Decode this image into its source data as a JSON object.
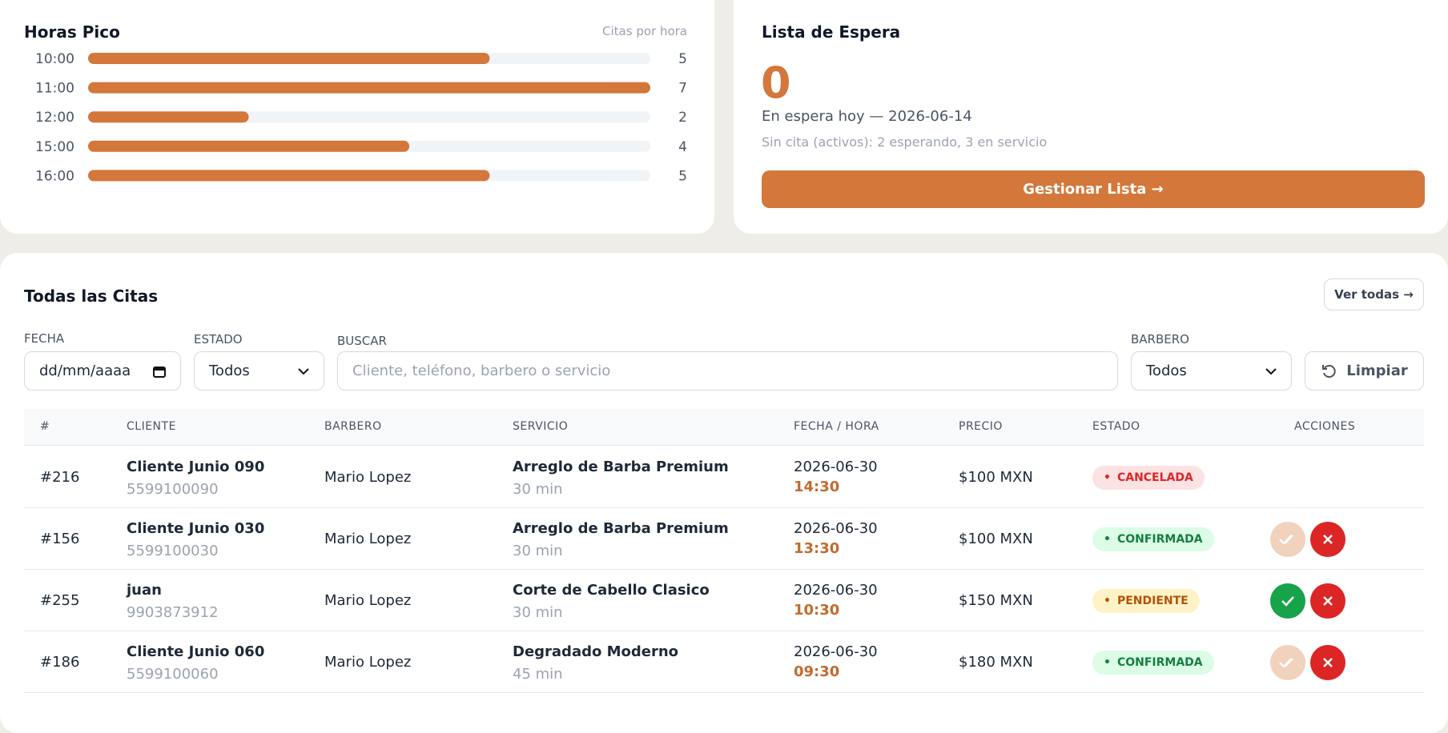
{
  "peak_hours": {
    "type": "bar",
    "title": "Horas Pico",
    "subtitle": "Citas por hora",
    "categories": [
      "10:00",
      "11:00",
      "12:00",
      "15:00",
      "16:00"
    ],
    "values": [
      5,
      7,
      2,
      4,
      5
    ],
    "color": "#d4773a"
  },
  "waitlist": {
    "title": "Lista de Espera",
    "count": "0",
    "today": "En espera hoy — 2026-06-14",
    "active": "Sin cita (activos): 2 esperando, 3 en servicio",
    "button": "Gestionar Lista →"
  },
  "appointments": {
    "title": "Todas las Citas",
    "view_all": "Ver todas →",
    "filters": {
      "date_label": "FECHA",
      "date_placeholder": "dd/mm/aaaa",
      "status_label": "ESTADO",
      "status_value": "Todos",
      "search_label": "BUSCAR",
      "search_placeholder": "Cliente, teléfono, barbero o servicio",
      "barber_label": "BARBERO",
      "barber_value": "Todos",
      "clear": "Limpiar"
    },
    "columns": [
      "#",
      "CLIENTE",
      "BARBERO",
      "SERVICIO",
      "FECHA / HORA",
      "PRECIO",
      "ESTADO",
      "ACCIONES"
    ],
    "rows": [
      {
        "id": "#216",
        "client": "Cliente Junio 090",
        "phone": "5599100090",
        "barber": "Mario Lopez",
        "service": "Arreglo de Barba Premium",
        "duration": "30 min",
        "date": "2026-06-30",
        "time": "14:30",
        "price": "$100 MXN",
        "status": "CANCELADA"
      },
      {
        "id": "#156",
        "client": "Cliente Junio 030",
        "phone": "5599100030",
        "barber": "Mario Lopez",
        "service": "Arreglo de Barba Premium",
        "duration": "30 min",
        "date": "2026-06-30",
        "time": "13:30",
        "price": "$100 MXN",
        "status": "CONFIRMADA"
      },
      {
        "id": "#255",
        "client": "juan",
        "phone": "9903873912",
        "barber": "Mario Lopez",
        "service": "Corte de Cabello Clasico",
        "duration": "30 min",
        "date": "2026-06-30",
        "time": "10:30",
        "price": "$150 MXN",
        "status": "PENDIENTE"
      },
      {
        "id": "#186",
        "client": "Cliente Junio 060",
        "phone": "5599100060",
        "barber": "Mario Lopez",
        "service": "Degradado Moderno",
        "duration": "45 min",
        "date": "2026-06-30",
        "time": "09:30",
        "price": "$180 MXN",
        "status": "CONFIRMADA"
      }
    ]
  }
}
